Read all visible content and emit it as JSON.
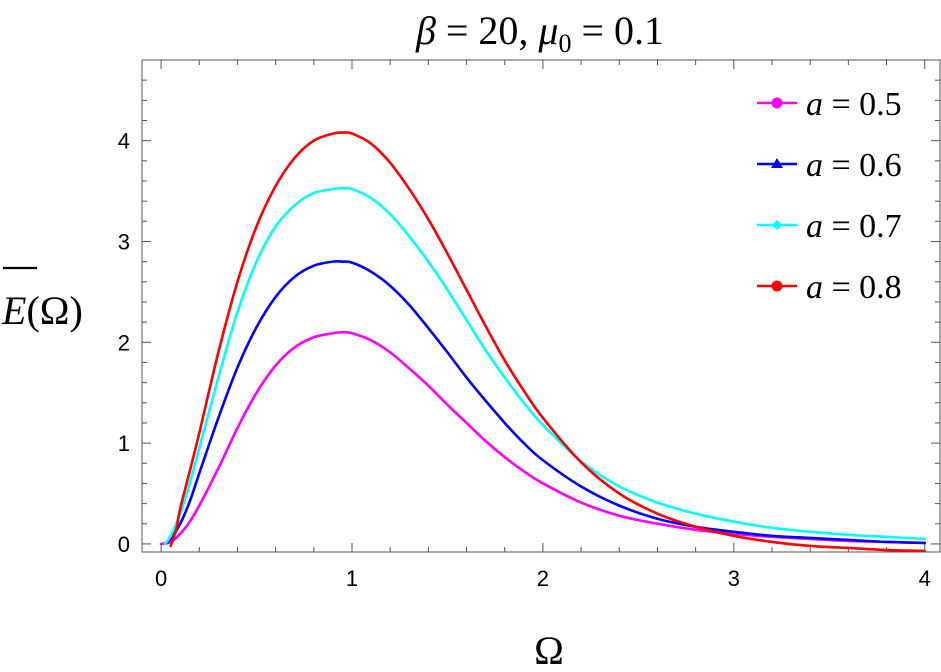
{
  "chart_data": {
    "type": "line",
    "title_parts": {
      "beta": "β",
      "eq1": " = 20, ",
      "mu": "μ",
      "mu_sub": "0",
      "eq2": " = 0.1"
    },
    "xlabel": "Ω",
    "ylabel_parts": {
      "e": "E",
      "arg": "(Ω)"
    },
    "xlim": [
      -0.1,
      4.08
    ],
    "ylim": [
      -0.08,
      4.8
    ],
    "x_ticks": [
      0,
      1,
      2,
      3,
      4
    ],
    "x_tick_labels": [
      "0",
      "1",
      "2",
      "3",
      "4"
    ],
    "y_ticks": [
      0,
      1,
      2,
      3,
      4
    ],
    "y_tick_labels": [
      "0",
      "1",
      "2",
      "3",
      "4"
    ],
    "grid": false,
    "legend_position": "top-right",
    "series": [
      {
        "name": "a = 0.5",
        "legend_var": "a",
        "legend_rest": " = 0.5",
        "color": "#ff00ff",
        "marker": "circle",
        "x": [
          0.0,
          0.05,
          0.1,
          0.15,
          0.2,
          0.3,
          0.4,
          0.5,
          0.6,
          0.7,
          0.8,
          0.9,
          0.95,
          1.0,
          1.1,
          1.2,
          1.3,
          1.4,
          1.5,
          1.6,
          1.7,
          1.8,
          1.9,
          2.0,
          2.2,
          2.4,
          2.6,
          2.8,
          3.0,
          3.2,
          3.4,
          3.6,
          3.8,
          4.0
        ],
        "y": [
          0.0,
          0.02,
          0.1,
          0.22,
          0.38,
          0.75,
          1.15,
          1.5,
          1.77,
          1.95,
          2.05,
          2.09,
          2.1,
          2.09,
          2.02,
          1.9,
          1.74,
          1.57,
          1.38,
          1.2,
          1.02,
          0.86,
          0.72,
          0.6,
          0.41,
          0.28,
          0.2,
          0.14,
          0.1,
          0.07,
          0.05,
          0.03,
          0.02,
          0.01
        ]
      },
      {
        "name": "a = 0.6",
        "legend_var": "a",
        "legend_rest": " = 0.6",
        "color": "#0000ff",
        "marker": "triangle",
        "x": [
          0.02,
          0.05,
          0.1,
          0.15,
          0.2,
          0.3,
          0.4,
          0.5,
          0.6,
          0.7,
          0.8,
          0.9,
          0.95,
          1.0,
          1.1,
          1.2,
          1.3,
          1.4,
          1.5,
          1.6,
          1.7,
          1.8,
          1.9,
          2.0,
          2.2,
          2.4,
          2.6,
          2.8,
          3.0,
          3.2,
          3.4,
          3.6,
          3.8,
          4.0
        ],
        "y": [
          0.0,
          0.05,
          0.2,
          0.42,
          0.7,
          1.25,
          1.75,
          2.15,
          2.45,
          2.65,
          2.76,
          2.8,
          2.8,
          2.79,
          2.7,
          2.56,
          2.37,
          2.14,
          1.9,
          1.65,
          1.42,
          1.2,
          1.0,
          0.83,
          0.57,
          0.38,
          0.25,
          0.17,
          0.12,
          0.08,
          0.06,
          0.04,
          0.02,
          0.01
        ]
      },
      {
        "name": "a = 0.7",
        "legend_var": "a",
        "legend_rest": " = 0.7",
        "color": "#00ffff",
        "marker": "diamond",
        "x": [
          0.02,
          0.05,
          0.1,
          0.15,
          0.2,
          0.3,
          0.4,
          0.5,
          0.6,
          0.7,
          0.8,
          0.9,
          0.95,
          1.0,
          1.1,
          1.2,
          1.3,
          1.4,
          1.5,
          1.6,
          1.7,
          1.8,
          1.9,
          2.0,
          2.2,
          2.4,
          2.6,
          2.8,
          3.0,
          3.2,
          3.4,
          3.6,
          3.8,
          4.0
        ],
        "y": [
          0.0,
          0.08,
          0.3,
          0.6,
          0.95,
          1.65,
          2.3,
          2.8,
          3.15,
          3.36,
          3.48,
          3.52,
          3.53,
          3.52,
          3.43,
          3.27,
          3.05,
          2.8,
          2.52,
          2.22,
          1.92,
          1.65,
          1.4,
          1.18,
          0.82,
          0.57,
          0.41,
          0.3,
          0.22,
          0.16,
          0.12,
          0.09,
          0.07,
          0.05
        ]
      },
      {
        "name": "a = 0.8",
        "legend_var": "a",
        "legend_rest": " = 0.8",
        "color": "#ff0000",
        "marker": "circle",
        "x": [
          0.05,
          0.08,
          0.1,
          0.15,
          0.2,
          0.3,
          0.4,
          0.5,
          0.6,
          0.7,
          0.8,
          0.9,
          0.95,
          1.0,
          1.1,
          1.2,
          1.3,
          1.4,
          1.5,
          1.6,
          1.7,
          1.8,
          1.9,
          2.0,
          2.2,
          2.4,
          2.6,
          2.8,
          3.0,
          3.2,
          3.4,
          3.6,
          3.8,
          4.0
        ],
        "y": [
          -0.02,
          0.15,
          0.35,
          0.72,
          1.1,
          1.9,
          2.6,
          3.15,
          3.55,
          3.83,
          4.0,
          4.07,
          4.08,
          4.07,
          3.97,
          3.78,
          3.52,
          3.22,
          2.88,
          2.52,
          2.16,
          1.82,
          1.52,
          1.25,
          0.81,
          0.5,
          0.3,
          0.17,
          0.08,
          0.02,
          -0.02,
          -0.04,
          -0.06,
          -0.07
        ]
      }
    ]
  }
}
